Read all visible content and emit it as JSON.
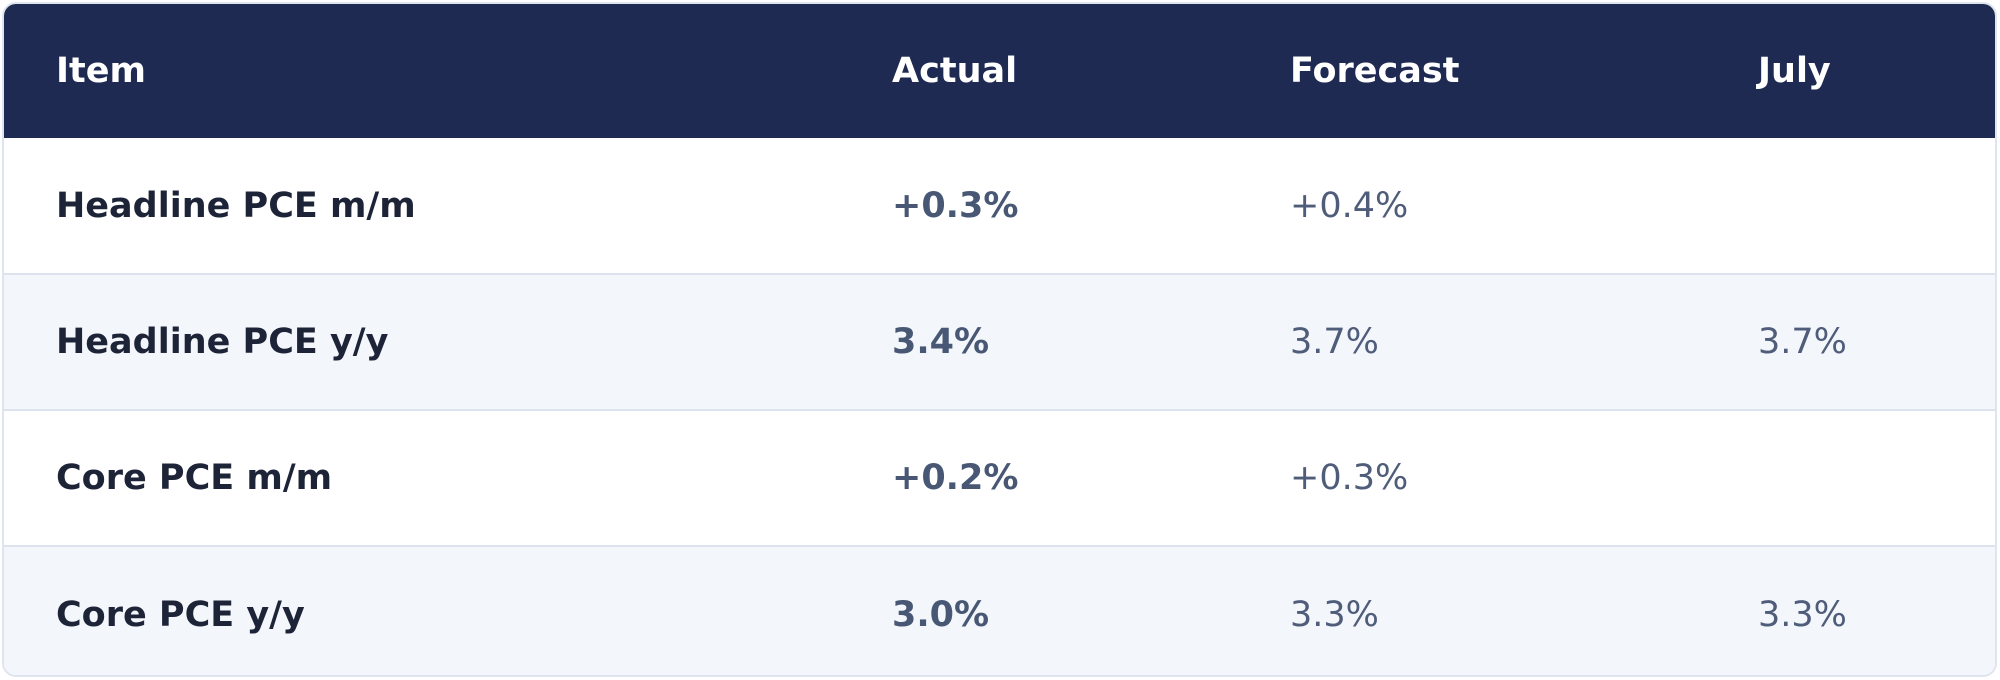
{
  "table": {
    "headers": {
      "item": "Item",
      "actual": "Actual",
      "forecast": "Forecast",
      "prior": "July"
    },
    "rows": [
      {
        "item": "Headline PCE m/m",
        "actual": "+0.3%",
        "forecast": "+0.4%",
        "prior": ""
      },
      {
        "item": "Headline PCE y/y",
        "actual": "3.4%",
        "forecast": "3.7%",
        "prior": "3.7%"
      },
      {
        "item": "Core PCE m/m",
        "actual": "+0.2%",
        "forecast": "+0.3%",
        "prior": ""
      },
      {
        "item": "Core PCE y/y",
        "actual": "3.0%",
        "forecast": "3.3%",
        "prior": "3.3%"
      }
    ]
  },
  "colors": {
    "header_bg": "#1e2a52",
    "alt_row_bg": "#f3f6fb",
    "border": "#dde3ee"
  }
}
